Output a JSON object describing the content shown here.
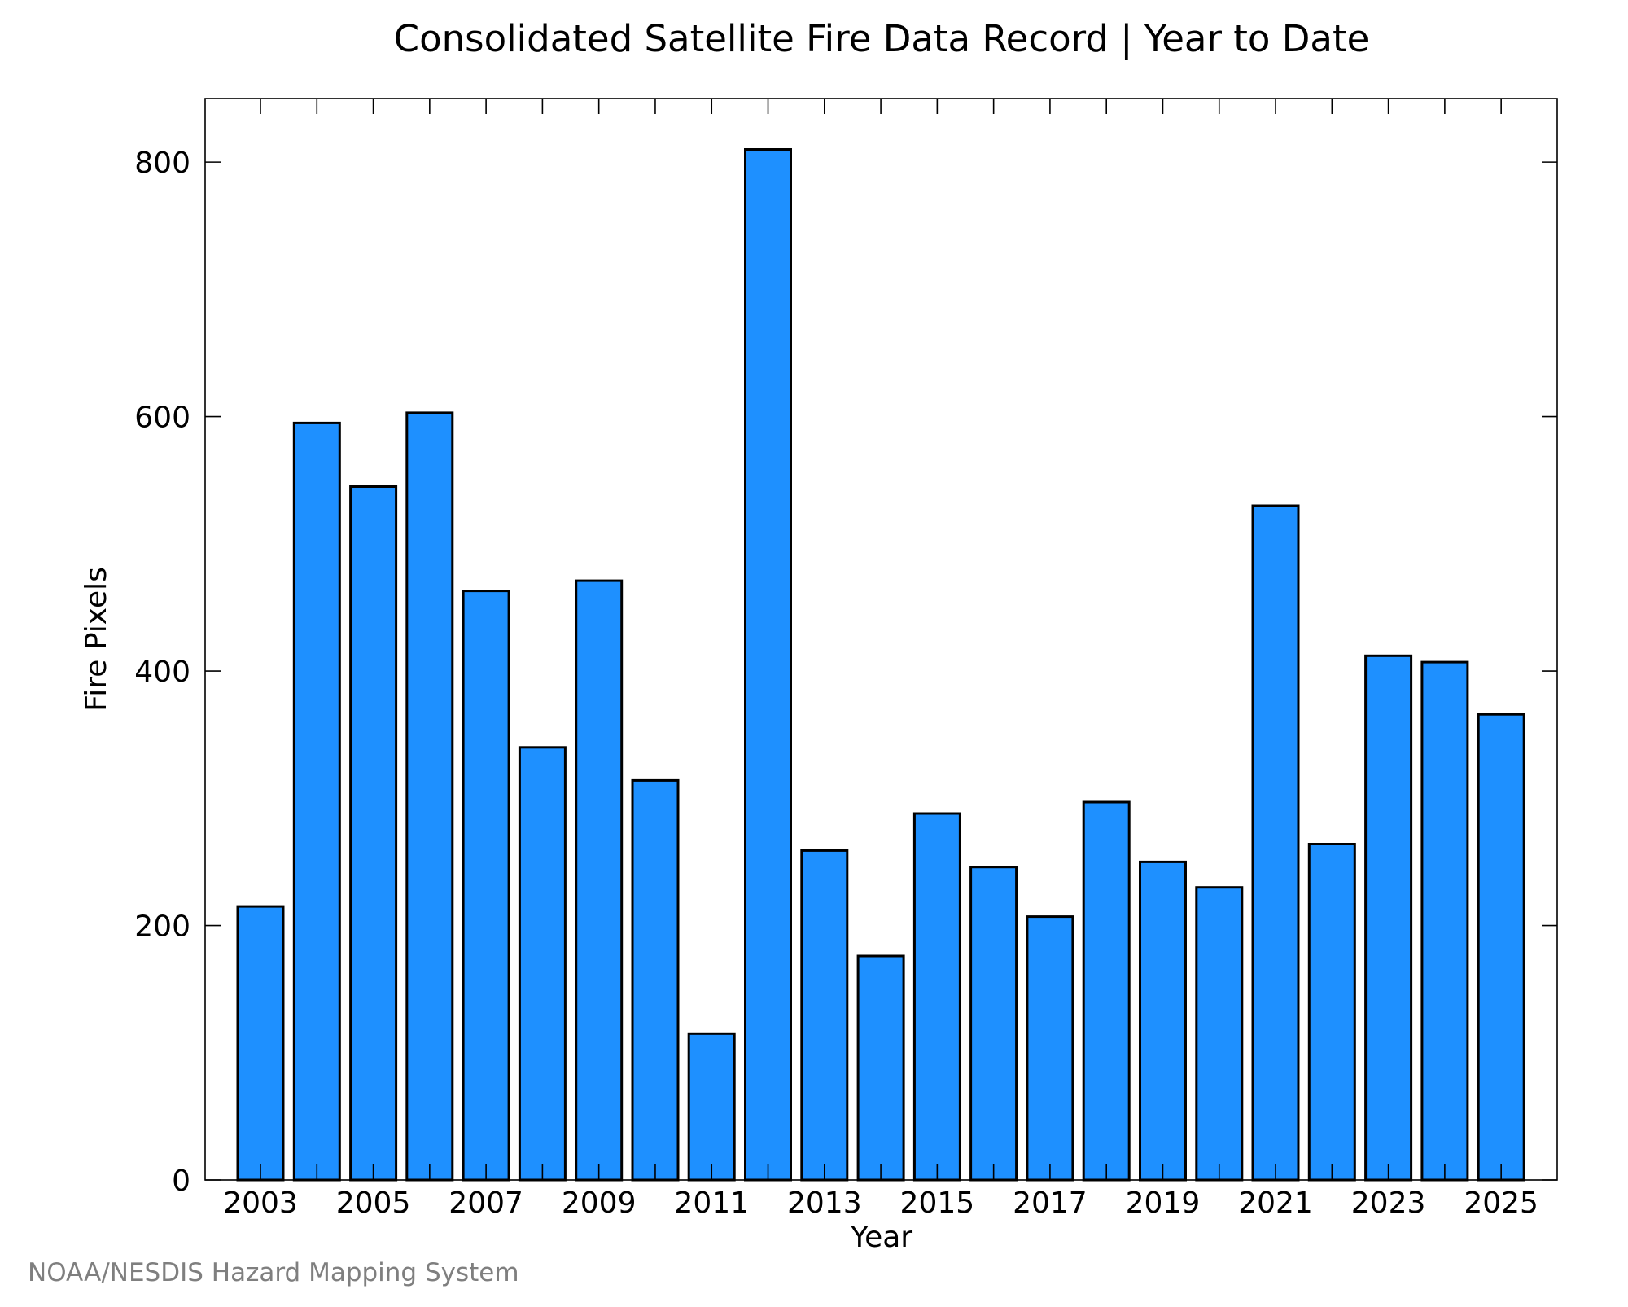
{
  "chart_data": {
    "type": "bar",
    "title": "Consolidated Satellite Fire Data Record | Year to Date",
    "xlabel": "Year",
    "ylabel": "Fire Pixels",
    "categories": [
      "2003",
      "2004",
      "2005",
      "2006",
      "2007",
      "2008",
      "2009",
      "2010",
      "2011",
      "2012",
      "2013",
      "2014",
      "2015",
      "2016",
      "2017",
      "2018",
      "2019",
      "2020",
      "2021",
      "2022",
      "2023",
      "2024",
      "2025"
    ],
    "values": [
      215,
      595,
      545,
      603,
      463,
      340,
      471,
      314,
      115,
      810,
      259,
      176,
      288,
      246,
      207,
      297,
      250,
      230,
      530,
      264,
      412,
      407,
      366
    ],
    "x_tick_labels": [
      "2003",
      "2005",
      "2007",
      "2009",
      "2011",
      "2013",
      "2015",
      "2017",
      "2019",
      "2021",
      "2023",
      "2025"
    ],
    "y_ticks": [
      0,
      200,
      400,
      600,
      800
    ],
    "ylim": [
      0,
      850
    ],
    "grid": false,
    "bar_color": "#1e90ff",
    "bar_edge_color": "#000000"
  },
  "credit": "NOAA/NESDIS Hazard Mapping System"
}
